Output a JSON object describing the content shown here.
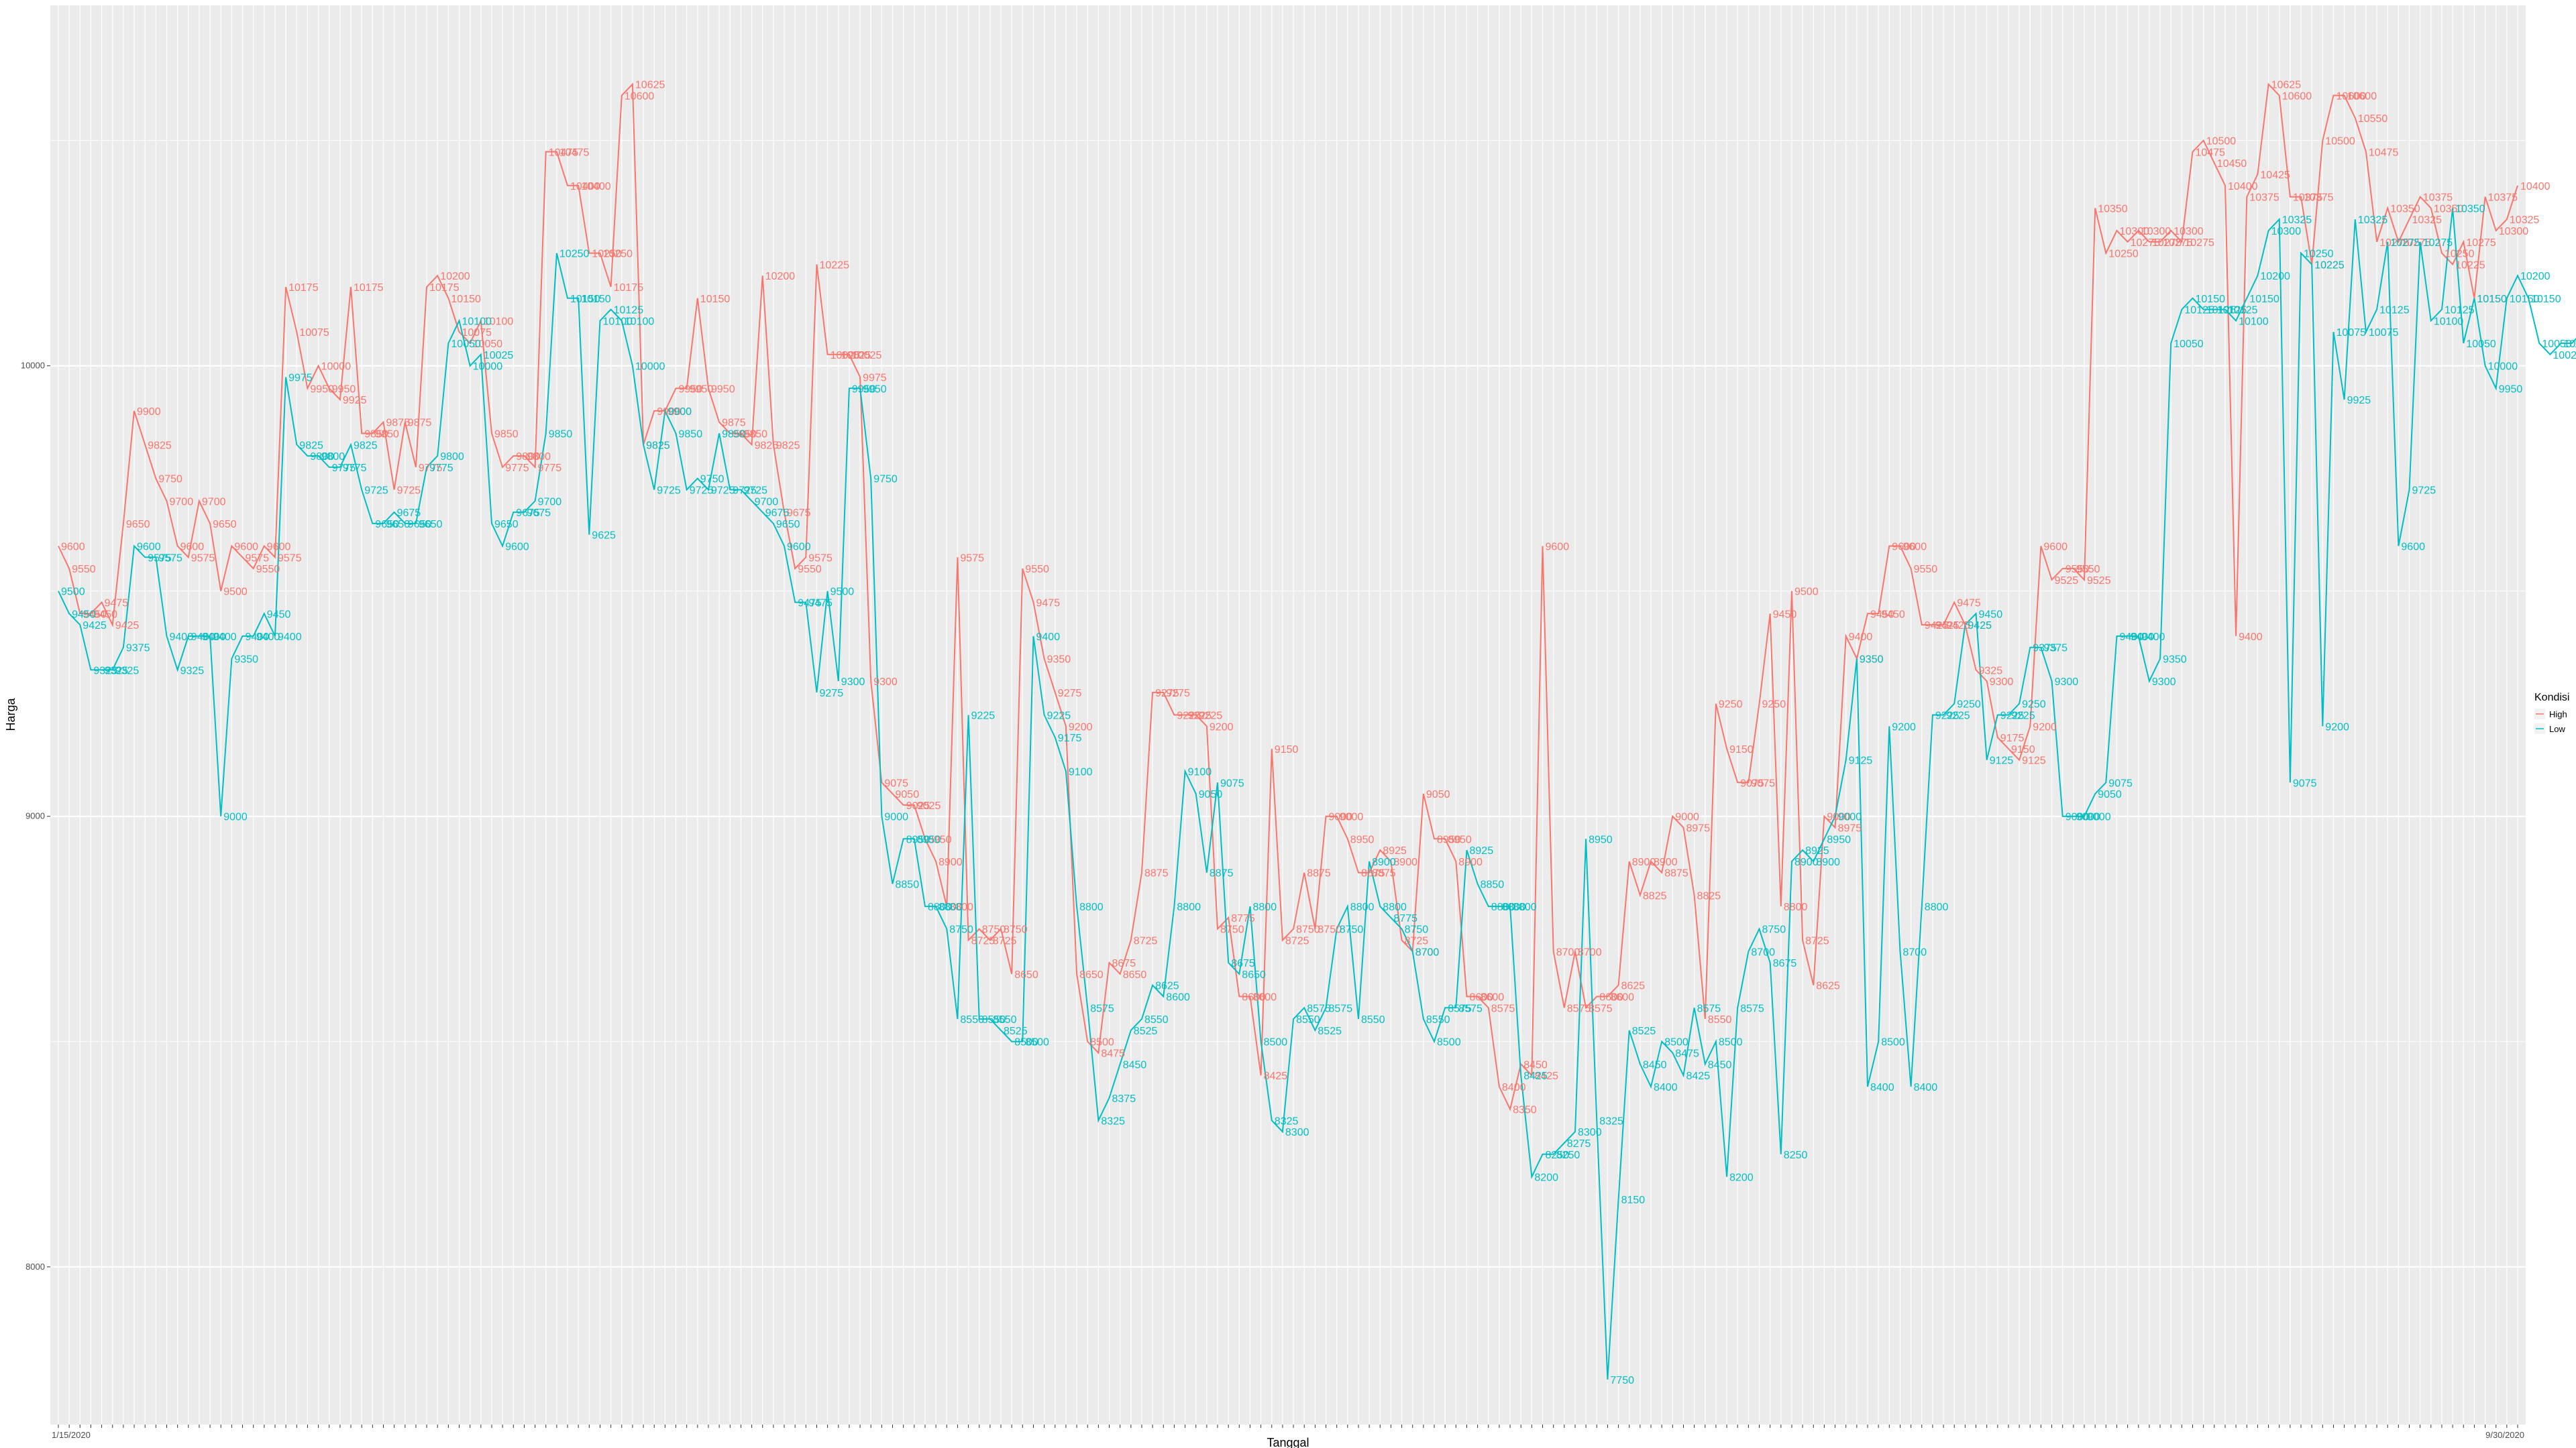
{
  "chart_data": {
    "type": "line",
    "title": "",
    "xlabel": "Tanggal",
    "ylabel": "Harga",
    "ylim": [
      7650,
      10800
    ],
    "yticks": [
      8000,
      9000,
      10000
    ],
    "grid": true,
    "legend": {
      "title": "Kondisi",
      "position": "right"
    },
    "x_first_label": "1/15/2020",
    "x_last_label": "9/30/2020",
    "series": [
      {
        "name": "High",
        "color": "#F8766D",
        "values": [
          9600,
          9550,
          9450,
          9450,
          9475,
          9425,
          9650,
          9900,
          9825,
          9750,
          9700,
          9600,
          9575,
          9700,
          9650,
          9500,
          9600,
          9575,
          9550,
          9600,
          9575,
          10175,
          10075,
          9950,
          10000,
          9950,
          9925,
          10175,
          9850,
          9850,
          9875,
          9725,
          9875,
          9775,
          10175,
          10200,
          10150,
          10075,
          10050,
          10100,
          9850,
          9775,
          9800,
          9800,
          9775,
          10475,
          10475,
          10400,
          10400,
          10250,
          10250,
          10175,
          10600,
          10625,
          9825,
          9900,
          9900,
          9950,
          9950,
          10150,
          9950,
          9875,
          9850,
          9850,
          9825,
          10200,
          9825,
          9675,
          9550,
          9575,
          10225,
          10025,
          10025,
          10025,
          9975,
          9300,
          9075,
          9050,
          9025,
          9025,
          8950,
          8900,
          8800,
          9575,
          8725,
          8750,
          8725,
          8750,
          8650,
          9550,
          9475,
          9350,
          9275,
          9200,
          8650,
          8500,
          8475,
          8675,
          8650,
          8725,
          8875,
          9275,
          9275,
          9225,
          9225,
          9225,
          9200,
          8750,
          8775,
          8600,
          8600,
          8425,
          9150,
          8725,
          8750,
          8875,
          8750,
          9000,
          9000,
          8950,
          8875,
          8875,
          8925,
          8900,
          8725,
          8700,
          9050,
          8950,
          8950,
          8900,
          8600,
          8600,
          8575,
          8400,
          8350,
          8450,
          8425,
          9600,
          8700,
          8575,
          8700,
          8575,
          8600,
          8600,
          8625,
          8900,
          8825,
          8900,
          8875,
          9000,
          8975,
          8825,
          8550,
          9250,
          9150,
          9075,
          9075,
          9250,
          9450,
          8800,
          9500,
          8725,
          8625,
          9000,
          8975,
          9400,
          9350,
          9450,
          9450,
          9600,
          9600,
          9550,
          9425,
          9425,
          9425,
          9475,
          9425,
          9325,
          9300,
          9175,
          9150,
          9125,
          9200,
          9600,
          9525,
          9550,
          9550,
          9525,
          10350,
          10250,
          10300,
          10275,
          10300,
          10275,
          10275,
          10300,
          10275,
          10475,
          10500,
          10450,
          10400,
          9400,
          10375,
          10425,
          10625,
          10600,
          10375,
          10375,
          10225,
          10500,
          10600,
          10600,
          10550,
          10475,
          10275,
          10350,
          10275,
          10325,
          10375,
          10350,
          10250,
          10225,
          10275,
          10150,
          10375,
          10300,
          10325,
          10400
        ]
      },
      {
        "name": "Low",
        "color": "#00BFC4",
        "values": [
          9500,
          9450,
          9425,
          9325,
          9325,
          9325,
          9375,
          9600,
          9575,
          9575,
          9400,
          9325,
          9400,
          9400,
          9400,
          9000,
          9350,
          9400,
          9400,
          9450,
          9400,
          9975,
          9825,
          9800,
          9800,
          9775,
          9775,
          9825,
          9725,
          9650,
          9650,
          9675,
          9650,
          9650,
          9775,
          9800,
          10050,
          10100,
          10000,
          10025,
          9650,
          9600,
          9675,
          9675,
          9700,
          9850,
          10250,
          10150,
          10150,
          9625,
          10100,
          10125,
          10100,
          10000,
          9825,
          9725,
          9900,
          9850,
          9725,
          9750,
          9725,
          9850,
          9725,
          9725,
          9700,
          9675,
          9650,
          9600,
          9475,
          9475,
          9275,
          9500,
          9300,
          9950,
          9950,
          9750,
          9000,
          8850,
          8950,
          8950,
          8800,
          8800,
          8750,
          8550,
          9225,
          8550,
          8550,
          8525,
          8500,
          8500,
          9400,
          9225,
          9175,
          9100,
          8800,
          8575,
          8325,
          8375,
          8450,
          8525,
          8550,
          8625,
          8600,
          8800,
          9100,
          9050,
          8875,
          9075,
          8675,
          8650,
          8800,
          8500,
          8325,
          8300,
          8550,
          8575,
          8525,
          8575,
          8750,
          8800,
          8550,
          8900,
          8800,
          8775,
          8750,
          8700,
          8550,
          8500,
          8575,
          8575,
          8925,
          8850,
          8800,
          8800,
          8800,
          8425,
          8200,
          8250,
          8250,
          8275,
          8300,
          8950,
          8325,
          7750,
          8150,
          8525,
          8450,
          8400,
          8500,
          8475,
          8425,
          8575,
          8450,
          8500,
          8200,
          8575,
          8700,
          8750,
          8675,
          8250,
          8900,
          8925,
          8900,
          8950,
          9000,
          9125,
          9350,
          8400,
          8500,
          9200,
          8700,
          8400,
          8800,
          9225,
          9225,
          9250,
          9425,
          9450,
          9125,
          9225,
          9225,
          9250,
          9375,
          9375,
          9300,
          9000,
          9000,
          9000,
          9050,
          9075,
          9400,
          9400,
          9400,
          9300,
          9350,
          10050,
          10125,
          10150,
          10125,
          10125,
          10125,
          10100,
          10150,
          10200,
          10300,
          10325,
          9075,
          10250,
          10225,
          9200,
          10075,
          9925,
          10325,
          10075,
          10125,
          10275,
          9600,
          9725,
          10275,
          10100,
          10125,
          10350,
          10050,
          10150,
          10000,
          9950,
          10150,
          10200,
          10150,
          10050,
          10025,
          10050,
          10050,
          10075,
          10150,
          10100,
          10250
        ]
      }
    ]
  }
}
